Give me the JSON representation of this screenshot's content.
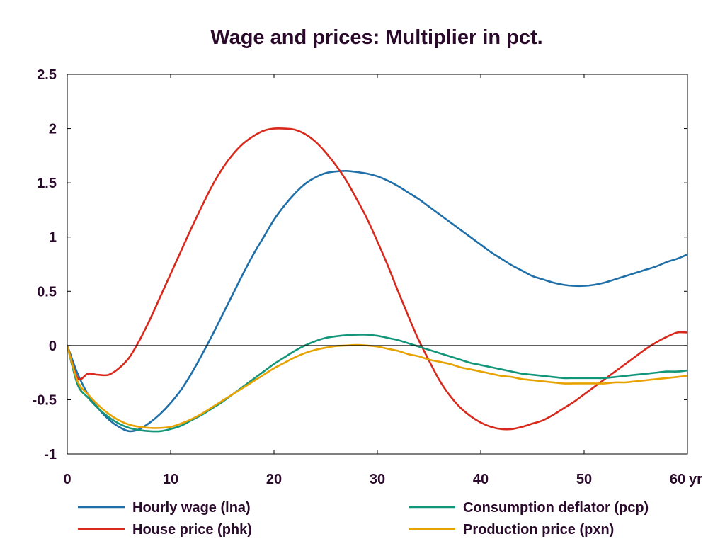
{
  "chart_data": {
    "type": "line",
    "title": "Wage and prices: Multiplier in pct.",
    "x_unit_label": "yr",
    "xlim": [
      0,
      60
    ],
    "ylim": [
      -1,
      2.5
    ],
    "x_ticks": [
      "0",
      "10",
      "20",
      "30",
      "40",
      "50",
      "60"
    ],
    "y_ticks": [
      "-1",
      "-0.5",
      "0",
      "0.5",
      "1",
      "1.5",
      "2",
      "2.5"
    ],
    "grid": false,
    "zero_line": true,
    "legend_position": "bottom",
    "x": [
      0,
      1,
      2,
      3,
      4,
      5,
      6,
      7,
      8,
      9,
      10,
      11,
      12,
      13,
      14,
      15,
      16,
      17,
      18,
      19,
      20,
      21,
      22,
      23,
      24,
      25,
      26,
      27,
      28,
      29,
      30,
      31,
      32,
      33,
      34,
      35,
      36,
      37,
      38,
      39,
      40,
      41,
      42,
      43,
      44,
      45,
      46,
      47,
      48,
      49,
      50,
      51,
      52,
      53,
      54,
      55,
      56,
      57,
      58,
      59,
      60
    ],
    "series": [
      {
        "name": "Hourly wage (lna)",
        "color": "#1f6fa8",
        "values": [
          0,
          -0.26,
          -0.45,
          -0.58,
          -0.68,
          -0.75,
          -0.79,
          -0.77,
          -0.71,
          -0.63,
          -0.53,
          -0.41,
          -0.26,
          -0.09,
          0.09,
          0.28,
          0.47,
          0.66,
          0.84,
          1.0,
          1.16,
          1.29,
          1.4,
          1.49,
          1.55,
          1.59,
          1.605,
          1.61,
          1.6,
          1.585,
          1.56,
          1.52,
          1.47,
          1.41,
          1.35,
          1.28,
          1.21,
          1.14,
          1.07,
          1.0,
          0.93,
          0.86,
          0.8,
          0.74,
          0.69,
          0.64,
          0.61,
          0.58,
          0.56,
          0.55,
          0.55,
          0.56,
          0.58,
          0.61,
          0.64,
          0.67,
          0.7,
          0.73,
          0.77,
          0.8,
          0.84
        ]
      },
      {
        "name": "House price (phk)",
        "color": "#d9291c",
        "values": [
          0,
          -0.3,
          -0.26,
          -0.27,
          -0.27,
          -0.21,
          -0.11,
          0.05,
          0.24,
          0.45,
          0.66,
          0.87,
          1.08,
          1.28,
          1.47,
          1.63,
          1.76,
          1.86,
          1.93,
          1.98,
          2.0,
          2.0,
          1.99,
          1.95,
          1.88,
          1.78,
          1.66,
          1.52,
          1.35,
          1.17,
          0.96,
          0.74,
          0.5,
          0.27,
          0.05,
          -0.14,
          -0.32,
          -0.46,
          -0.57,
          -0.65,
          -0.71,
          -0.75,
          -0.77,
          -0.77,
          -0.75,
          -0.72,
          -0.69,
          -0.64,
          -0.58,
          -0.52,
          -0.45,
          -0.38,
          -0.31,
          -0.24,
          -0.17,
          -0.1,
          -0.03,
          0.03,
          0.08,
          0.12,
          0.12
        ]
      },
      {
        "name": "Consumption deflator (pcp)",
        "color": "#13957a",
        "values": [
          0,
          -0.36,
          -0.48,
          -0.58,
          -0.66,
          -0.72,
          -0.76,
          -0.78,
          -0.79,
          -0.79,
          -0.77,
          -0.74,
          -0.69,
          -0.64,
          -0.58,
          -0.52,
          -0.45,
          -0.38,
          -0.31,
          -0.24,
          -0.17,
          -0.11,
          -0.05,
          0.0,
          0.04,
          0.07,
          0.085,
          0.095,
          0.1,
          0.1,
          0.09,
          0.07,
          0.05,
          0.02,
          -0.01,
          -0.04,
          -0.07,
          -0.1,
          -0.13,
          -0.16,
          -0.18,
          -0.2,
          -0.22,
          -0.24,
          -0.26,
          -0.27,
          -0.28,
          -0.29,
          -0.3,
          -0.3,
          -0.3,
          -0.3,
          -0.3,
          -0.29,
          -0.28,
          -0.27,
          -0.26,
          -0.25,
          -0.24,
          -0.24,
          -0.23
        ]
      },
      {
        "name": "Production price (pxn)",
        "color": "#e8a200",
        "values": [
          0,
          -0.33,
          -0.45,
          -0.55,
          -0.63,
          -0.69,
          -0.73,
          -0.75,
          -0.76,
          -0.76,
          -0.75,
          -0.72,
          -0.68,
          -0.63,
          -0.57,
          -0.51,
          -0.45,
          -0.39,
          -0.33,
          -0.27,
          -0.21,
          -0.16,
          -0.11,
          -0.07,
          -0.04,
          -0.02,
          -0.005,
          0.0,
          0.005,
          0.0,
          -0.01,
          -0.03,
          -0.05,
          -0.08,
          -0.1,
          -0.13,
          -0.15,
          -0.17,
          -0.2,
          -0.22,
          -0.24,
          -0.26,
          -0.28,
          -0.29,
          -0.31,
          -0.32,
          -0.33,
          -0.34,
          -0.35,
          -0.35,
          -0.35,
          -0.35,
          -0.35,
          -0.34,
          -0.34,
          -0.33,
          -0.32,
          -0.31,
          -0.3,
          -0.29,
          -0.28
        ]
      }
    ]
  }
}
